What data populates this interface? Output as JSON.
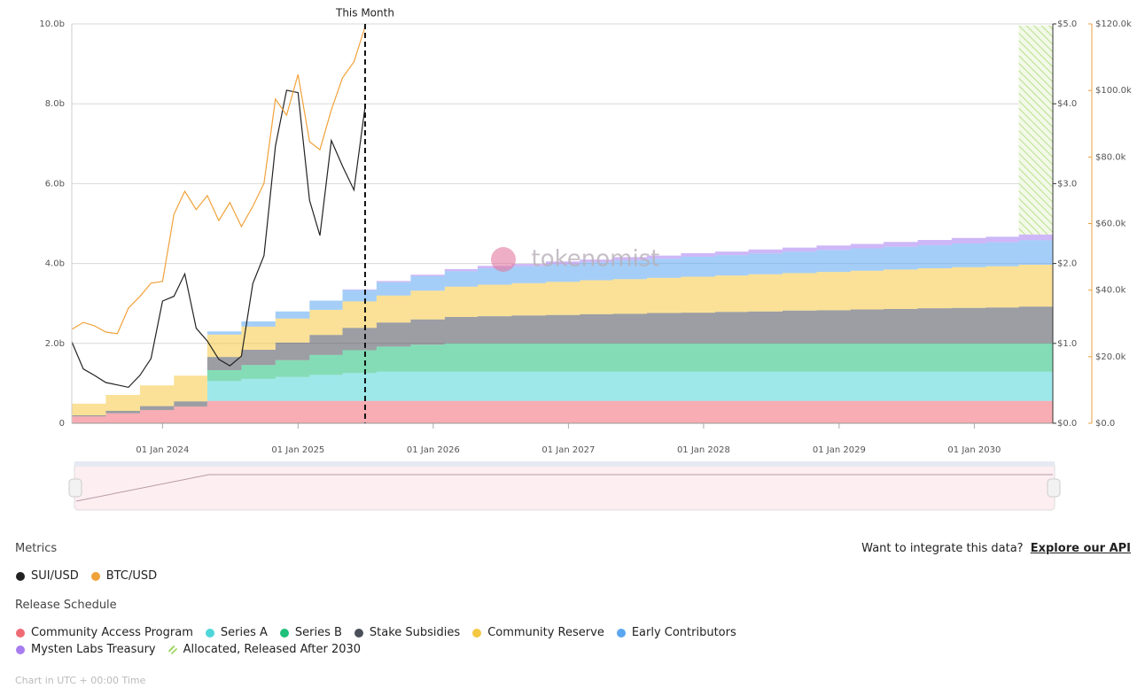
{
  "chart_data": {
    "type": "stacked-area",
    "watermark": "tokenomist",
    "annotation": {
      "label": "This Month",
      "x": "2025-07-01"
    },
    "x": [
      "2023-05-01",
      "2023-08-01",
      "2023-11-01",
      "2024-02-01",
      "2024-05-01",
      "2024-08-01",
      "2024-11-01",
      "2025-02-01",
      "2025-05-01",
      "2025-08-01",
      "2025-11-01",
      "2026-02-01",
      "2026-05-01",
      "2026-08-01",
      "2026-11-01",
      "2027-02-01",
      "2027-05-01",
      "2027-08-01",
      "2027-11-01",
      "2028-02-01",
      "2028-05-01",
      "2028-08-01",
      "2028-11-01",
      "2029-02-01",
      "2029-05-01",
      "2029-08-01",
      "2029-11-01",
      "2030-02-01",
      "2030-05-01",
      "2030-08-01"
    ],
    "xlim": [
      "2023-05-01",
      "2030-08-01"
    ],
    "xticks": [
      {
        "value": "2024-01-01",
        "label": "01 Jan 2024"
      },
      {
        "value": "2025-01-01",
        "label": "01 Jan 2025"
      },
      {
        "value": "2026-01-01",
        "label": "01 Jan 2026"
      },
      {
        "value": "2027-01-01",
        "label": "01 Jan 2027"
      },
      {
        "value": "2028-01-01",
        "label": "01 Jan 2028"
      },
      {
        "value": "2029-01-01",
        "label": "01 Jan 2029"
      },
      {
        "value": "2030-01-01",
        "label": "01 Jan 2030"
      }
    ],
    "ylim": [
      0,
      10
    ],
    "yticks": [
      0,
      {
        "value": 2,
        "label": "2.0b"
      },
      {
        "value": 4,
        "label": "4.0b"
      },
      {
        "value": 6,
        "label": "6.0b"
      },
      {
        "value": 8,
        "label": "8.0b"
      },
      {
        "value": 10,
        "label": "10.0b"
      }
    ],
    "y2lim": [
      0,
      5
    ],
    "y2ticks": [
      {
        "value": 0,
        "label": "$0.0"
      },
      {
        "value": 1,
        "label": "$1.0"
      },
      {
        "value": 2,
        "label": "$2.0"
      },
      {
        "value": 3,
        "label": "$3.0"
      },
      {
        "value": 4,
        "label": "$4.0"
      },
      {
        "value": 5,
        "label": "$5.0"
      }
    ],
    "y3lim": [
      0,
      120000
    ],
    "y3ticks": [
      {
        "value": 0,
        "label": "$0.0"
      },
      {
        "value": 20000,
        "label": "$20.0k"
      },
      {
        "value": 40000,
        "label": "$40.0k"
      },
      {
        "value": 60000,
        "label": "$60.0k"
      },
      {
        "value": 80000,
        "label": "$80.0k"
      },
      {
        "value": 100000,
        "label": "$100.0k"
      },
      {
        "value": 120000,
        "label": "$120.0k"
      }
    ],
    "grid": true,
    "metrics_title": "Metrics",
    "schedule_title": "Release Schedule",
    "api_text": "Want to integrate this data?",
    "api_link": "Explore our API",
    "footnote": "Chart in UTC + 00:00 Time",
    "series": [
      {
        "name": "Community Access Program",
        "color": "#f06a74",
        "values": [
          0.17,
          0.25,
          0.33,
          0.42,
          0.56,
          0.56,
          0.56,
          0.56,
          0.56,
          0.56,
          0.56,
          0.56,
          0.56,
          0.56,
          0.56,
          0.56,
          0.56,
          0.56,
          0.56,
          0.56,
          0.56,
          0.56,
          0.56,
          0.56,
          0.56,
          0.56,
          0.56,
          0.56,
          0.56,
          0.56
        ]
      },
      {
        "name": "Series A",
        "color": "#4fd6d9",
        "values": [
          null,
          null,
          null,
          null,
          0.5,
          0.55,
          0.6,
          0.65,
          0.7,
          0.73,
          0.73,
          0.73,
          0.73,
          0.73,
          0.73,
          0.73,
          0.73,
          0.73,
          0.73,
          0.73,
          0.73,
          0.73,
          0.73,
          0.73,
          0.73,
          0.73,
          0.73,
          0.73,
          0.73,
          0.73
        ]
      },
      {
        "name": "Series B",
        "color": "#1fc07a",
        "values": [
          null,
          null,
          null,
          null,
          0.27,
          0.35,
          0.42,
          0.5,
          0.57,
          0.63,
          0.68,
          0.71,
          0.71,
          0.71,
          0.71,
          0.71,
          0.71,
          0.71,
          0.71,
          0.71,
          0.71,
          0.71,
          0.71,
          0.71,
          0.71,
          0.71,
          0.71,
          0.71,
          0.71,
          0.71
        ]
      },
      {
        "name": "Stake Subsidies",
        "color": "#4a4f5a",
        "values": [
          0.03,
          0.06,
          0.1,
          0.13,
          0.33,
          0.38,
          0.44,
          0.5,
          0.56,
          0.6,
          0.63,
          0.66,
          0.68,
          0.7,
          0.71,
          0.73,
          0.74,
          0.76,
          0.77,
          0.79,
          0.8,
          0.82,
          0.83,
          0.85,
          0.86,
          0.88,
          0.89,
          0.9,
          0.92,
          0.93
        ]
      },
      {
        "name": "Community Reserve",
        "color": "#f5c842",
        "values": [
          0.29,
          0.4,
          0.52,
          0.64,
          0.56,
          0.58,
          0.6,
          0.63,
          0.66,
          0.68,
          0.72,
          0.76,
          0.79,
          0.81,
          0.83,
          0.85,
          0.87,
          0.88,
          0.9,
          0.91,
          0.93,
          0.94,
          0.96,
          0.97,
          0.99,
          1.0,
          1.02,
          1.03,
          1.05,
          1.06
        ]
      },
      {
        "name": "Early Contributors",
        "color": "#5aa6f0",
        "values": [
          null,
          null,
          null,
          null,
          0.08,
          0.13,
          0.18,
          0.23,
          0.28,
          0.33,
          0.36,
          0.39,
          0.41,
          0.42,
          0.44,
          0.45,
          0.47,
          0.48,
          0.5,
          0.51,
          0.52,
          0.54,
          0.55,
          0.56,
          0.57,
          0.58,
          0.59,
          0.6,
          0.61,
          0.62
        ]
      },
      {
        "name": "Mysten Labs Treasury",
        "color": "#a67cf0",
        "values": [
          null,
          null,
          null,
          null,
          null,
          null,
          null,
          null,
          0.02,
          0.03,
          0.04,
          0.05,
          0.06,
          0.06,
          0.07,
          0.07,
          0.08,
          0.08,
          0.09,
          0.09,
          0.1,
          0.1,
          0.11,
          0.11,
          0.12,
          0.13,
          0.14,
          0.14,
          0.15,
          0.16
        ]
      },
      {
        "name": "Allocated, Released After 2030",
        "color": "#a3d86a",
        "hatched": true,
        "values": [
          null,
          null,
          null,
          null,
          null,
          null,
          null,
          null,
          null,
          null,
          null,
          null,
          null,
          null,
          null,
          null,
          null,
          null,
          null,
          null,
          null,
          null,
          null,
          null,
          null,
          null,
          null,
          null,
          5.23,
          5.23
        ]
      }
    ],
    "lines": [
      {
        "name": "SUI/USD",
        "color": "#222222",
        "axis": "y2",
        "x": [
          "2023-05-01",
          "2023-06-01",
          "2023-07-01",
          "2023-08-01",
          "2023-09-01",
          "2023-10-01",
          "2023-11-01",
          "2023-12-01",
          "2024-01-01",
          "2024-02-01",
          "2024-03-01",
          "2024-04-01",
          "2024-05-01",
          "2024-06-01",
          "2024-07-01",
          "2024-08-01",
          "2024-09-01",
          "2024-10-01",
          "2024-11-01",
          "2024-12-01",
          "2025-01-01",
          "2025-02-01",
          "2025-03-01",
          "2025-04-01",
          "2025-05-01",
          "2025-06-01",
          "2025-07-01"
        ],
        "values": [
          1.02,
          0.68,
          0.6,
          0.51,
          0.48,
          0.45,
          0.6,
          0.81,
          1.53,
          1.59,
          1.87,
          1.19,
          1.03,
          0.8,
          0.72,
          0.84,
          1.75,
          2.1,
          3.47,
          4.17,
          4.14,
          2.79,
          2.35,
          3.54,
          3.22,
          2.92,
          3.97
        ]
      },
      {
        "name": "BTC/USD",
        "color": "#f0a23a",
        "axis": "y3",
        "x": [
          "2023-05-01",
          "2023-06-01",
          "2023-07-01",
          "2023-08-01",
          "2023-09-01",
          "2023-10-01",
          "2023-11-01",
          "2023-12-01",
          "2024-01-01",
          "2024-02-01",
          "2024-03-01",
          "2024-04-01",
          "2024-05-01",
          "2024-06-01",
          "2024-07-01",
          "2024-08-01",
          "2024-09-01",
          "2024-10-01",
          "2024-11-01",
          "2024-12-01",
          "2025-01-01",
          "2025-02-01",
          "2025-03-01",
          "2025-04-01",
          "2025-05-01",
          "2025-06-01",
          "2025-07-01"
        ],
        "values": [
          28200,
          30300,
          29300,
          27400,
          26900,
          34600,
          38100,
          42100,
          42600,
          62800,
          69700,
          64200,
          68400,
          60900,
          66300,
          59100,
          65200,
          72100,
          97400,
          92600,
          104800,
          84600,
          82200,
          94200,
          103800,
          108600,
          119200
        ]
      }
    ]
  }
}
